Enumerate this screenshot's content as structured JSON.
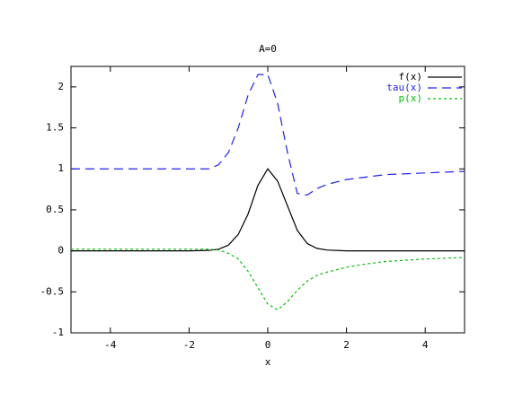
{
  "chart_data": {
    "type": "line",
    "title": "A=0",
    "x_label": "x",
    "x": [
      -5,
      -4,
      -3,
      -2,
      -1.5,
      -1.25,
      -1,
      -0.75,
      -0.5,
      -0.25,
      0,
      0.25,
      0.5,
      0.75,
      1,
      1.25,
      1.5,
      2,
      2.5,
      3,
      4,
      5
    ],
    "series": [
      {
        "name": "f(x)",
        "color": "#000000",
        "dash": "none",
        "values": [
          0,
          0,
          0,
          0,
          0.005,
          0.02,
          0.07,
          0.2,
          0.45,
          0.8,
          1,
          0.85,
          0.55,
          0.25,
          0.09,
          0.03,
          0.01,
          0,
          0,
          0,
          0,
          0
        ]
      },
      {
        "name": "tau(x)",
        "color": "#2020ff",
        "dash": "10,6",
        "values": [
          1,
          1,
          1,
          1,
          1,
          1.05,
          1.2,
          1.5,
          1.9,
          2.15,
          2.15,
          1.8,
          1.2,
          0.7,
          0.68,
          0.76,
          0.81,
          0.87,
          0.9,
          0.93,
          0.95,
          0.97
        ]
      },
      {
        "name": "p(x)",
        "color": "#00c000",
        "dash": "3,3",
        "values": [
          0.02,
          0.02,
          0.02,
          0.02,
          0.02,
          0.01,
          -0.03,
          -0.1,
          -0.25,
          -0.45,
          -0.65,
          -0.72,
          -0.62,
          -0.48,
          -0.37,
          -0.3,
          -0.26,
          -0.2,
          -0.16,
          -0.13,
          -0.1,
          -0.08
        ]
      }
    ],
    "xlim": [
      -5,
      5
    ],
    "xticks": [
      -4,
      -2,
      0,
      2,
      4
    ],
    "ylim": [
      -1,
      2.25
    ],
    "yticks": [
      -1,
      -0.5,
      0,
      0.5,
      1,
      1.5,
      2
    ],
    "legend": "top-right"
  }
}
